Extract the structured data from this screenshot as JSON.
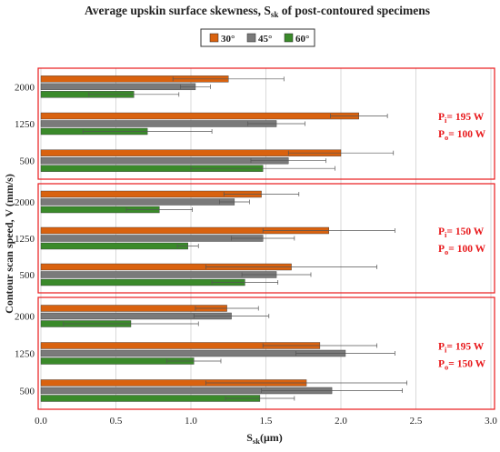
{
  "chart_data": {
    "type": "bar",
    "orientation": "horizontal",
    "title": "Average upskin surface skewness, S",
    "title_sub": "sk",
    "title_suffix": " of post-contoured specimens",
    "xlabel": "S",
    "xlabel_sub": "sk",
    "xlabel_suffix": "(μm)",
    "ylabel": "Contour scan speed, V (mm/s)",
    "xlim": [
      0.0,
      3.0
    ],
    "x_ticks": [
      "0.0",
      "0.5",
      "1.0",
      "1.5",
      "2.0",
      "2.5",
      "3.0"
    ],
    "grid": "vertical",
    "legend_position": "top-center",
    "series": [
      {
        "name": "30°",
        "color": "#d9620f"
      },
      {
        "name": "45°",
        "color": "#7a7a7a"
      },
      {
        "name": "60°",
        "color": "#3a8a2a"
      }
    ],
    "groups": [
      {
        "label_pi": "P",
        "sub_pi": "i",
        "val_pi": "= 195 W",
        "label_po": "P",
        "sub_po": "o",
        "val_po": "= 100 W",
        "categories": [
          {
            "label": "2000",
            "values": [
              1.25,
              1.03,
              0.62
            ],
            "errors": [
              0.37,
              0.1,
              0.3
            ]
          },
          {
            "label": "1250",
            "values": [
              2.12,
              1.57,
              0.71
            ],
            "errors": [
              0.19,
              0.19,
              0.43
            ]
          },
          {
            "label": "500",
            "values": [
              2.0,
              1.65,
              1.48
            ],
            "errors": [
              0.35,
              0.25,
              0.48
            ]
          }
        ]
      },
      {
        "label_pi": "P",
        "sub_pi": "i",
        "val_pi": "= 150 W",
        "label_po": "P",
        "sub_po": "o",
        "val_po": "= 100 W",
        "categories": [
          {
            "label": "2000",
            "values": [
              1.47,
              1.29,
              0.79
            ],
            "errors": [
              0.25,
              0.1,
              0.22
            ]
          },
          {
            "label": "1250",
            "values": [
              1.92,
              1.48,
              0.98
            ],
            "errors": [
              0.44,
              0.21,
              0.07
            ]
          },
          {
            "label": "500",
            "values": [
              1.67,
              1.57,
              1.36
            ],
            "errors": [
              0.57,
              0.23,
              0.22
            ]
          }
        ]
      },
      {
        "label_pi": "P",
        "sub_pi": "i",
        "val_pi": "= 195 W",
        "label_po": "P",
        "sub_po": "o",
        "val_po": "= 150 W",
        "categories": [
          {
            "label": "2000",
            "values": [
              1.24,
              1.27,
              0.6
            ],
            "errors": [
              0.21,
              0.25,
              0.45
            ]
          },
          {
            "label": "1250",
            "values": [
              1.86,
              2.03,
              1.02
            ],
            "errors": [
              0.38,
              0.33,
              0.18
            ]
          },
          {
            "label": "500",
            "values": [
              1.77,
              1.94,
              1.46
            ],
            "errors": [
              0.67,
              0.47,
              0.23
            ]
          }
        ]
      }
    ]
  }
}
